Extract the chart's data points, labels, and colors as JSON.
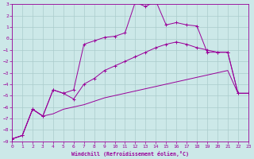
{
  "xlabel": "Windchill (Refroidissement éolien,°C)",
  "xlim": [
    0,
    23
  ],
  "ylim": [
    -9,
    3
  ],
  "xticks": [
    0,
    1,
    2,
    3,
    4,
    5,
    6,
    7,
    8,
    9,
    10,
    11,
    12,
    13,
    14,
    15,
    16,
    17,
    18,
    19,
    20,
    21,
    22,
    23
  ],
  "yticks": [
    3,
    2,
    1,
    0,
    -1,
    -2,
    -3,
    -4,
    -5,
    -6,
    -7,
    -8,
    -9
  ],
  "background_color": "#cce8e8",
  "grid_color": "#aacccc",
  "line_color": "#990099",
  "line1_x": [
    0,
    1,
    2,
    3,
    4,
    5,
    6,
    7,
    8,
    9,
    10,
    11,
    12,
    13,
    14,
    15,
    16,
    17,
    18,
    19,
    20,
    21,
    22,
    23
  ],
  "line1_y": [
    -8.8,
    -8.5,
    -6.2,
    -6.8,
    -6.6,
    -6.2,
    -6.0,
    -5.8,
    -5.5,
    -5.2,
    -5.0,
    -4.8,
    -4.6,
    -4.4,
    -4.2,
    -4.0,
    -3.8,
    -3.6,
    -3.4,
    -3.2,
    -3.0,
    -2.8,
    -4.8,
    -4.8
  ],
  "line2_x": [
    0,
    1,
    2,
    3,
    4,
    5,
    6,
    7,
    8,
    9,
    10,
    11,
    12,
    13,
    14,
    15,
    16,
    17,
    18,
    19,
    20,
    21,
    22,
    23
  ],
  "line2_y": [
    -8.8,
    -8.5,
    -6.2,
    -6.8,
    -4.5,
    -4.8,
    -4.5,
    -0.5,
    -0.2,
    0.1,
    0.2,
    0.5,
    3.2,
    2.8,
    3.3,
    1.2,
    1.4,
    1.2,
    1.1,
    -1.2,
    -1.2,
    -1.2,
    -4.8,
    -4.8
  ],
  "line3_x": [
    0,
    1,
    2,
    3,
    4,
    5,
    6,
    7,
    8,
    9,
    10,
    11,
    12,
    13,
    14,
    15,
    16,
    17,
    18,
    19,
    20,
    21,
    22,
    23
  ],
  "line3_y": [
    -8.8,
    -8.5,
    -6.2,
    -6.8,
    -4.5,
    -4.8,
    -5.3,
    -4.0,
    -3.5,
    -2.8,
    -2.4,
    -2.0,
    -1.6,
    -1.2,
    -0.8,
    -0.5,
    -0.3,
    -0.5,
    -0.8,
    -1.0,
    -1.2,
    -1.2,
    -4.8,
    -4.8
  ],
  "figsize": [
    3.2,
    2.0
  ],
  "dpi": 100
}
